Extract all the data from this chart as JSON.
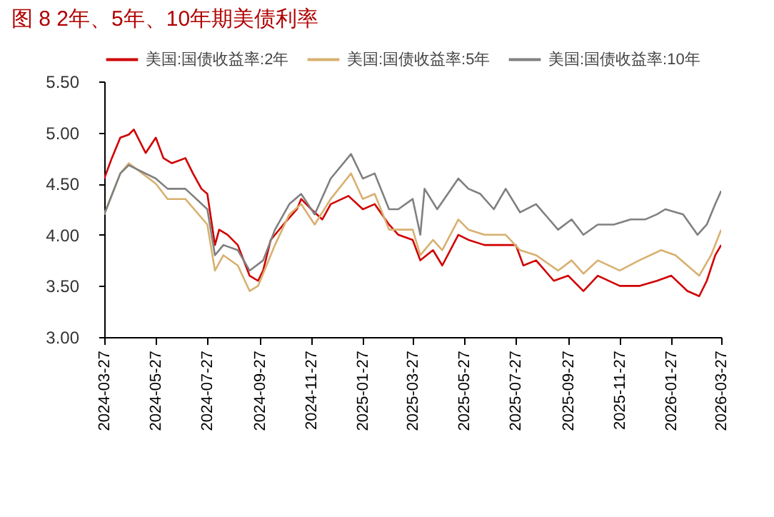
{
  "chart_data": {
    "type": "line",
    "title": "图 8 2年、5年、10年期美债利率",
    "xlim": [
      "2024-03-27",
      "2026-03-27"
    ],
    "xticks": [
      "2024-03-27",
      "2024-05-27",
      "2024-07-27",
      "2024-09-27",
      "2024-11-27",
      "2025-01-27",
      "2025-03-27",
      "2025-05-27",
      "2025-07-27",
      "2025-09-27",
      "2025-11-27",
      "2026-01-27",
      "2026-03-27"
    ],
    "ylim": [
      3,
      5.5
    ],
    "yticks": [
      {
        "value": 3,
        "label": "3.00"
      },
      {
        "value": 3.5,
        "label": "3.50"
      },
      {
        "value": 4,
        "label": "4.00"
      },
      {
        "value": 4.5,
        "label": "4.50"
      },
      {
        "value": 5,
        "label": "5.00"
      },
      {
        "value": 5.5,
        "label": "5.50"
      }
    ],
    "grid": false,
    "legend": "top",
    "line_style": "solid",
    "series": [
      {
        "name": "美国:国债收益率:2年",
        "color": "#d00000",
        "x": [
          "2024-03-27",
          "2024-04-05",
          "2024-04-15",
          "2024-04-25",
          "2024-05-01",
          "2024-05-15",
          "2024-05-27",
          "2024-06-05",
          "2024-06-15",
          "2024-07-01",
          "2024-07-10",
          "2024-07-20",
          "2024-07-27",
          "2024-08-05",
          "2024-08-10",
          "2024-08-20",
          "2024-09-01",
          "2024-09-15",
          "2024-09-25",
          "2024-10-01",
          "2024-10-10",
          "2024-10-25",
          "2024-11-10",
          "2024-11-15",
          "2024-11-27",
          "2024-12-10",
          "2024-12-20",
          "2025-01-10",
          "2025-01-27",
          "2025-02-10",
          "2025-02-27",
          "2025-03-10",
          "2025-03-27",
          "2025-04-05",
          "2025-04-20",
          "2025-05-01",
          "2025-05-20",
          "2025-06-01",
          "2025-06-20",
          "2025-07-01",
          "2025-07-27",
          "2025-08-05",
          "2025-08-20",
          "2025-09-10",
          "2025-09-27",
          "2025-10-15",
          "2025-11-01",
          "2025-11-27",
          "2025-12-20",
          "2026-01-10",
          "2026-01-27",
          "2026-02-15",
          "2026-03-01",
          "2026-03-10",
          "2026-03-20",
          "2026-03-27"
        ],
        "values": [
          4.55,
          4.75,
          4.95,
          4.98,
          5.03,
          4.8,
          4.95,
          4.75,
          4.7,
          4.75,
          4.6,
          4.45,
          4.4,
          3.9,
          4.05,
          4.0,
          3.9,
          3.6,
          3.55,
          3.65,
          3.95,
          4.1,
          4.25,
          4.35,
          4.25,
          4.15,
          4.3,
          4.38,
          4.25,
          4.3,
          4.1,
          4.0,
          3.95,
          3.75,
          3.85,
          3.7,
          4.0,
          3.95,
          3.9,
          3.9,
          3.9,
          3.7,
          3.75,
          3.55,
          3.6,
          3.45,
          3.6,
          3.5,
          3.5,
          3.55,
          3.6,
          3.45,
          3.4,
          3.55,
          3.8,
          3.9
        ]
      },
      {
        "name": "美国:国债收益率:5年",
        "color": "#d8b070",
        "x": [
          "2024-03-27",
          "2024-04-15",
          "2024-04-25",
          "2024-05-27",
          "2024-06-10",
          "2024-07-01",
          "2024-07-27",
          "2024-08-05",
          "2024-08-15",
          "2024-09-01",
          "2024-09-15",
          "2024-09-25",
          "2024-10-15",
          "2024-11-01",
          "2024-11-15",
          "2024-12-01",
          "2024-12-20",
          "2025-01-13",
          "2025-01-27",
          "2025-02-10",
          "2025-02-27",
          "2025-03-10",
          "2025-03-27",
          "2025-04-05",
          "2025-04-20",
          "2025-05-01",
          "2025-05-20",
          "2025-06-01",
          "2025-06-20",
          "2025-07-15",
          "2025-08-01",
          "2025-08-20",
          "2025-09-15",
          "2025-10-01",
          "2025-10-15",
          "2025-11-01",
          "2025-11-27",
          "2025-12-20",
          "2026-01-15",
          "2026-02-01",
          "2026-02-15",
          "2026-03-01",
          "2026-03-15",
          "2026-03-27"
        ],
        "values": [
          4.2,
          4.6,
          4.7,
          4.5,
          4.35,
          4.35,
          4.1,
          3.65,
          3.8,
          3.7,
          3.45,
          3.5,
          3.9,
          4.2,
          4.3,
          4.1,
          4.35,
          4.6,
          4.35,
          4.4,
          4.05,
          4.05,
          4.05,
          3.8,
          3.95,
          3.85,
          4.15,
          4.05,
          4.0,
          4.0,
          3.85,
          3.8,
          3.65,
          3.75,
          3.62,
          3.75,
          3.65,
          3.75,
          3.85,
          3.8,
          3.7,
          3.6,
          3.8,
          4.05
        ]
      },
      {
        "name": "美国:国债收益率:10年",
        "color": "#808080",
        "x": [
          "2024-03-27",
          "2024-04-15",
          "2024-04-25",
          "2024-05-27",
          "2024-06-10",
          "2024-07-01",
          "2024-07-27",
          "2024-08-05",
          "2024-08-15",
          "2024-09-01",
          "2024-09-15",
          "2024-10-01",
          "2024-10-15",
          "2024-11-01",
          "2024-11-15",
          "2024-12-01",
          "2024-12-20",
          "2025-01-13",
          "2025-01-27",
          "2025-02-10",
          "2025-02-27",
          "2025-03-10",
          "2025-03-27",
          "2025-04-05",
          "2025-04-10",
          "2025-04-25",
          "2025-05-20",
          "2025-06-01",
          "2025-06-15",
          "2025-07-01",
          "2025-07-15",
          "2025-08-01",
          "2025-08-20",
          "2025-09-15",
          "2025-10-01",
          "2025-10-15",
          "2025-11-01",
          "2025-11-20",
          "2025-12-10",
          "2025-12-27",
          "2026-01-10",
          "2026-01-20",
          "2026-02-10",
          "2026-02-27",
          "2026-03-10",
          "2026-03-20",
          "2026-03-27"
        ],
        "values": [
          4.2,
          4.6,
          4.68,
          4.55,
          4.45,
          4.45,
          4.25,
          3.8,
          3.9,
          3.85,
          3.65,
          3.75,
          4.05,
          4.3,
          4.4,
          4.2,
          4.55,
          4.79,
          4.55,
          4.6,
          4.25,
          4.25,
          4.35,
          4.0,
          4.45,
          4.25,
          4.55,
          4.45,
          4.4,
          4.25,
          4.45,
          4.22,
          4.3,
          4.05,
          4.15,
          4.0,
          4.1,
          4.1,
          4.15,
          4.15,
          4.2,
          4.25,
          4.2,
          4.0,
          4.1,
          4.3,
          4.43
        ]
      }
    ]
  }
}
